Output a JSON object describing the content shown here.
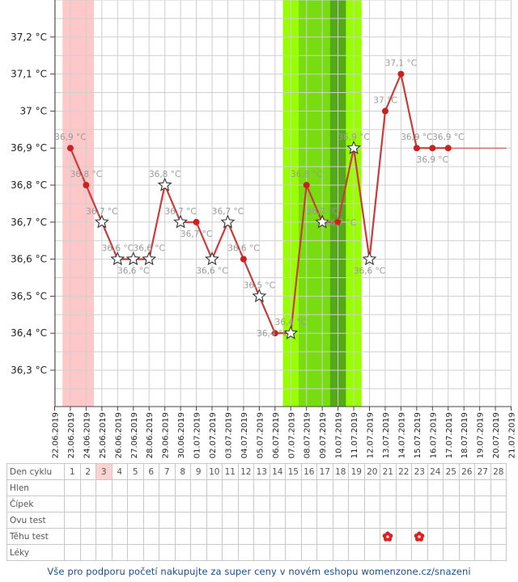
{
  "chart_data": {
    "type": "line",
    "y_unit": " °C",
    "yticks": [
      36.3,
      36.4,
      36.5,
      36.6,
      36.7,
      36.8,
      36.9,
      37.0,
      37.1,
      37.2
    ],
    "ytick_labels": [
      "36,3 °C",
      "36,4 °C",
      "36,5 °C",
      "36,6 °C",
      "36,7 °C",
      "36,8 °C",
      "36,9 °C",
      "37 °C",
      "37,1 °C",
      "37,2 °C"
    ],
    "ylim": [
      36.2,
      37.3
    ],
    "x_dates": [
      "22.06.2019",
      "23.06.2019",
      "24.06.2019",
      "25.06.2019",
      "26.06.2019",
      "27.06.2019",
      "28.06.2019",
      "29.06.2019",
      "30.06.2019",
      "01.07.2019",
      "02.07.2019",
      "03.07.2019",
      "04.07.2019",
      "05.07.2019",
      "06.07.2019",
      "07.07.2019",
      "08.07.2019",
      "09.07.2019",
      "10.07.2019",
      "11.07.2019",
      "12.07.2019",
      "13.07.2019",
      "14.07.2019",
      "15.07.2019",
      "16.07.2019",
      "17.07.2019",
      "18.07.2019",
      "19.07.2019",
      "20.07.2019",
      "21.07.2019"
    ],
    "points": [
      {
        "date": "23.06.2019",
        "value": 36.9,
        "label": "36,9 °C",
        "marker": "dot",
        "label_pos": "above"
      },
      {
        "date": "24.06.2019",
        "value": 36.8,
        "label": "36,8 °C",
        "marker": "dot",
        "label_pos": "above"
      },
      {
        "date": "25.06.2019",
        "value": 36.7,
        "label": "36,7 °C",
        "marker": "star",
        "label_pos": "above"
      },
      {
        "date": "26.06.2019",
        "value": 36.6,
        "label": "36,6 °C",
        "marker": "star",
        "label_pos": "above"
      },
      {
        "date": "27.06.2019",
        "value": 36.6,
        "label": "36,6 °C",
        "marker": "star",
        "label_pos": "below"
      },
      {
        "date": "28.06.2019",
        "value": 36.6,
        "label": "36,6 °C",
        "marker": "star",
        "label_pos": "above"
      },
      {
        "date": "29.06.2019",
        "value": 36.8,
        "label": "36,8 °C",
        "marker": "star",
        "label_pos": "above"
      },
      {
        "date": "30.06.2019",
        "value": 36.7,
        "label": "36,7 °C",
        "marker": "star",
        "label_pos": "above"
      },
      {
        "date": "01.07.2019",
        "value": 36.7,
        "label": "36,7 °C",
        "marker": "dot",
        "label_pos": "below"
      },
      {
        "date": "02.07.2019",
        "value": 36.6,
        "label": "36,6 °C",
        "marker": "star",
        "label_pos": "below"
      },
      {
        "date": "03.07.2019",
        "value": 36.7,
        "label": "36,7 °C",
        "marker": "star",
        "label_pos": "above"
      },
      {
        "date": "04.07.2019",
        "value": 36.6,
        "label": "36,6 °C",
        "marker": "dot",
        "label_pos": "above"
      },
      {
        "date": "05.07.2019",
        "value": 36.5,
        "label": "36,5 °C",
        "marker": "star",
        "label_pos": "above"
      },
      {
        "date": "06.07.2019",
        "value": 36.4,
        "label": "36,4 °C",
        "marker": "dot",
        "label_pos": "left"
      },
      {
        "date": "07.07.2019",
        "value": 36.4,
        "label": "36,4 °C",
        "marker": "star",
        "label_pos": "above"
      },
      {
        "date": "08.07.2019",
        "value": 36.8,
        "label": "36,8 °C",
        "marker": "dot",
        "label_pos": "above"
      },
      {
        "date": "09.07.2019",
        "value": 36.7,
        "label": "36,7 °C",
        "marker": "star",
        "label_pos": "above"
      },
      {
        "date": "10.07.2019",
        "value": 36.7,
        "label": "36,7 °C",
        "marker": "dot",
        "label_pos": "right"
      },
      {
        "date": "11.07.2019",
        "value": 36.9,
        "label": "36,9 °C",
        "marker": "star",
        "label_pos": "above"
      },
      {
        "date": "12.07.2019",
        "value": 36.6,
        "label": "36,6 °C",
        "marker": "star",
        "label_pos": "below"
      },
      {
        "date": "13.07.2019",
        "value": 37.0,
        "label": "37 °C",
        "marker": "dot",
        "label_pos": "above"
      },
      {
        "date": "14.07.2019",
        "value": 37.1,
        "label": "37,1 °C",
        "marker": "dot",
        "label_pos": "above"
      },
      {
        "date": "15.07.2019",
        "value": 36.9,
        "label": "36,9 °C",
        "marker": "dot",
        "label_pos": "above"
      },
      {
        "date": "16.07.2019",
        "value": 36.9,
        "label": "36,9 °C",
        "marker": "dot",
        "label_pos": "below"
      },
      {
        "date": "17.07.2019",
        "value": 36.9,
        "label": "36,9 °C",
        "marker": "dot",
        "label_pos": "above"
      }
    ],
    "projection": {
      "from_date": "17.07.2019",
      "to_date": "21.07.2019",
      "value": 36.9
    },
    "bands": [
      {
        "from_date": "22.06.2019",
        "to_date": "24.06.2019",
        "color": "#ffc8c8"
      },
      {
        "from_date": "06.07.2019",
        "to_date": "11.07.2019",
        "color": "#99ff00"
      },
      {
        "from_date": "07.07.2019",
        "to_date": "10.07.2019",
        "color": "#77dd11"
      },
      {
        "from_date": "09.07.2019",
        "to_date": "10.07.2019",
        "color": "#55a81a"
      }
    ],
    "colors": {
      "line": "#c83c3c",
      "dot": "#cc2020",
      "star_fill": "#ffffff",
      "star_stroke": "#333333",
      "grid": "#cfcfcf"
    },
    "grid": true
  },
  "table": {
    "rows": [
      {
        "label": "Den cyklu",
        "type": "days"
      },
      {
        "label": "Hlen",
        "type": "empty"
      },
      {
        "label": "Čípek",
        "type": "empty"
      },
      {
        "label": "Ovu test",
        "type": "empty"
      },
      {
        "label": "Těhu test",
        "type": "marks"
      },
      {
        "label": "Léky",
        "type": "empty"
      }
    ],
    "days": [
      "1",
      "2",
      "3",
      "4",
      "5",
      "6",
      "7",
      "8",
      "9",
      "10",
      "11",
      "12",
      "13",
      "14",
      "15",
      "16",
      "17",
      "18",
      "19",
      "20",
      "21",
      "22",
      "23",
      "24",
      "25",
      "26",
      "27",
      "28"
    ],
    "highlight_day": "3",
    "test_marks": [
      "21",
      "23"
    ],
    "mark_icon": "red-flower-icon",
    "mark_color": "#e02020"
  },
  "footer": {
    "text": "Vše pro podporu početí nakupujte za super ceny v novém eshopu womenzone.cz/snazeni"
  }
}
